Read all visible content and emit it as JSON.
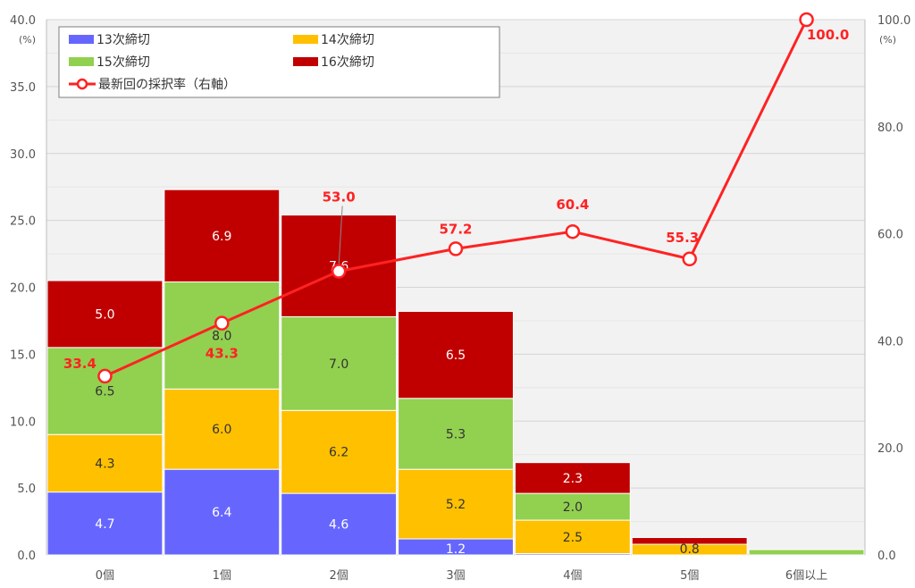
{
  "chart_data": {
    "type": "bar",
    "stacked": true,
    "categories": [
      "0個",
      "1個",
      "2個",
      "3個",
      "4個",
      "5個",
      "6個以上"
    ],
    "series": [
      {
        "name": "13次締切",
        "color": "#6666ff",
        "values": [
          4.7,
          6.4,
          4.6,
          1.2,
          0.1,
          0.0,
          0.0
        ],
        "labels": [
          "4.7",
          "6.4",
          "4.6",
          "1.2",
          "",
          "",
          ""
        ]
      },
      {
        "name": "14次締切",
        "color": "#ffc000",
        "values": [
          4.3,
          6.0,
          6.2,
          5.2,
          2.5,
          0.8,
          0.0
        ],
        "labels": [
          "4.3",
          "6.0",
          "6.2",
          "5.2",
          "2.5",
          "0.8",
          ""
        ]
      },
      {
        "name": "15次締切",
        "color": "#92d050",
        "values": [
          6.5,
          8.0,
          7.0,
          5.3,
          2.0,
          0.0,
          0.4
        ],
        "labels": [
          "6.5",
          "8.0",
          "7.0",
          "5.3",
          "2.0",
          "",
          ""
        ]
      },
      {
        "name": "16次締切",
        "color": "#c00000",
        "values": [
          5.0,
          6.9,
          7.6,
          6.5,
          2.3,
          0.5,
          0.0
        ],
        "labels": [
          "5.0",
          "6.9",
          "7.6",
          "6.5",
          "2.3",
          "",
          ""
        ]
      }
    ],
    "line_series": {
      "name": "最新回の採択率（右軸）",
      "color": "#ff2222",
      "axis": "right",
      "values": [
        33.4,
        43.3,
        53.0,
        57.2,
        60.4,
        55.3,
        100.0
      ],
      "labels": [
        "33.4",
        "43.3",
        "53.0",
        "57.2",
        "60.4",
        "55.3",
        "100.0"
      ]
    },
    "y_left": {
      "ylim": [
        0,
        40
      ],
      "ticks": [
        "0.0",
        "5.0",
        "10.0",
        "15.0",
        "20.0",
        "25.0",
        "30.0",
        "35.0",
        "40.0"
      ],
      "unit": "(%)"
    },
    "y_right": {
      "ylim": [
        0,
        100
      ],
      "ticks": [
        "0.0",
        "20.0",
        "40.0",
        "60.0",
        "80.0",
        "100.0"
      ],
      "unit": "(%)"
    },
    "grid": true,
    "legend": "top-left"
  }
}
